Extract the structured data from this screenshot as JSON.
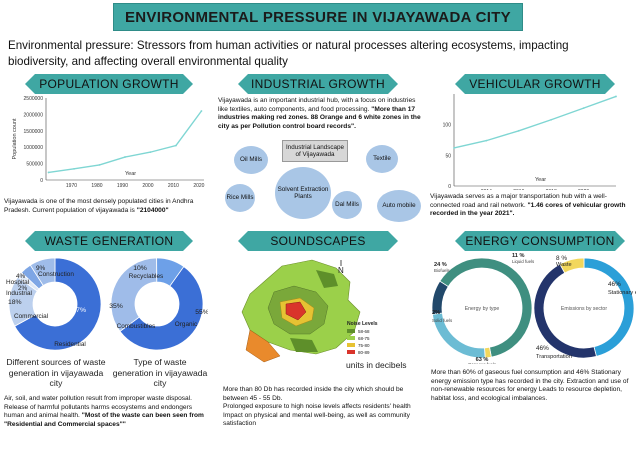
{
  "title": "ENVIRONMENTAL PRESSURE IN VIJAYAWADA CITY",
  "intro": "Environmental pressure: Stressors from human activities or natural processes altering ecosystems, impacting biodiversity, and affecting overall environmental quality",
  "sections": {
    "population": "POPULATION GROWTH",
    "industrial": "INDUSTRIAL GROWTH",
    "vehicular": "VEHICULAR GROWTH",
    "waste": "WASTE GENERATION",
    "soundscapes": "SOUNDSCAPES",
    "energy": "ENERGY CONSUMPTION"
  },
  "population": {
    "text_a": "Vijayawada is one of the most densely populated cities in Andhra Pradesh. Current population of vijayawada is ",
    "text_b": "\"2104000\""
  },
  "industrial": {
    "text_a": "Vijayawada is an important industrial hub, with a focus on industries like textiles, auto components, and food processing.",
    "text_b": "\"More than 17 industries making red zones. 88 Orange and 6 white zones in the city as per Pollution control board records\".",
    "center": "Industrial Landscape of Vijayawada",
    "bubbles": [
      "Oil Mills",
      "Textile",
      "Solvent Extraction Plants",
      "Rice Mills",
      "Dal Mills",
      "Auto mobile"
    ]
  },
  "vehicular": {
    "text_a": "Vijayawada serves as a major transportation hub with a well-connected road and rail network. ",
    "text_b": "\"1.46 cores of vehicular growth recorded in the year 2021\"."
  },
  "waste": {
    "caption1": "Different sources of waste generation in vijayawada city",
    "caption2": "Type of waste generation in vijayawada city",
    "text_a": "Air, soil, and water pollution result from improper waste disposal. Release of harmful pollutants harms ecosystems and endongers human and animal health. ",
    "text_b": "\"Most of the waste can been seen from \"Residential and Commercial spaces\"\""
  },
  "soundscapes": {
    "text": "More than 80 Db has recorded inside the city which should be between 45 - 55 Db.\nProlonged exposure to high noise levels affects residents' health Impact on physical and mental well-being, as well as community satisfaction",
    "legend_title": "Noise Levels",
    "legend": [
      "58-68",
      "68-75",
      "75-80",
      "80-89"
    ],
    "units_label": "units in decibels",
    "north": "N"
  },
  "energy": {
    "text": "More than 60% of gaseous fuel consumption and 46% Stationary energy emission type has recorded in the city. Extraction and use of non-renewable resources for energy Leads to resource depletion, habitat loss, and ecological imbalances.",
    "donut1_center": "Energy by type",
    "donut2_center": "Emissions by sector"
  },
  "chart_data": [
    {
      "type": "line",
      "title": "",
      "xlabel": "Year",
      "ylabel": "Population count",
      "x": [
        1961,
        1971,
        1981,
        1991,
        2001,
        2011,
        2021
      ],
      "series": [
        {
          "values": [
            230000,
            340000,
            460000,
            700000,
            850000,
            1050000,
            2104000
          ]
        }
      ],
      "xticks": [
        "1970",
        "1980",
        "1990",
        "2000",
        "2010",
        "2020"
      ],
      "yticks": [
        "0",
        "500000",
        "1000000",
        "1500000",
        "2000000",
        "2500000"
      ],
      "xlim": [
        1960,
        2022
      ],
      "ylim": [
        0,
        2500000
      ],
      "color": "#7fd6d3"
    },
    {
      "type": "line",
      "title": "",
      "xlabel": "Year",
      "ylabel": "Growth in lakhs",
      "x": [
        2012,
        2014,
        2016,
        2018,
        2020,
        2022
      ],
      "series": [
        {
          "values": [
            62,
            74,
            90,
            108,
            127,
            146
          ]
        }
      ],
      "xticks": [
        "2014",
        "2016",
        "2018",
        "2020"
      ],
      "yticks": [
        "0",
        "50",
        "100"
      ],
      "xlim": [
        2012,
        2022
      ],
      "ylim": [
        0,
        150
      ],
      "color": "#7fd6d3"
    },
    {
      "type": "pie",
      "title": "",
      "labels": [
        "Residential",
        "Commercial",
        "Industrial",
        "Hospital",
        "Construction"
      ],
      "values": [
        67,
        18,
        2,
        4,
        9
      ],
      "display": [
        "67%",
        "18%",
        "2%",
        "4%",
        "9%"
      ],
      "colors": [
        "#3b6fd6",
        "#bcd0ee",
        "#dfe8f6",
        "#7ea6e5",
        "#9fbce9"
      ]
    },
    {
      "type": "pie",
      "title": "",
      "labels": [
        "Organic",
        "Combustibles",
        "Recyclables"
      ],
      "values": [
        55,
        35,
        10
      ],
      "display": [
        "55%",
        "35%",
        "10%"
      ],
      "colors": [
        "#3b6fd6",
        "#9fbce9",
        "#6da0e8"
      ]
    },
    {
      "type": "pie",
      "title": "Energy by type",
      "labels": [
        "Gaseous fuels",
        "Solid fuels",
        "Biofuels",
        "Liquid fuels"
      ],
      "values": [
        63,
        2,
        24,
        11
      ],
      "display": [
        "63 %",
        "2%",
        "24 %",
        "11 %"
      ],
      "colors": [
        "#3f8f80",
        "#f2d75c",
        "#6cbcd4",
        "#22496b"
      ]
    },
    {
      "type": "pie",
      "title": "Emissions by sector",
      "labels": [
        "Stationary energy",
        "Transportation",
        "Waste"
      ],
      "values": [
        46,
        46,
        8
      ],
      "display": [
        "46%",
        "46%",
        "8 %"
      ],
      "colors": [
        "#2b9fd8",
        "#23346b",
        "#f2d75c"
      ]
    }
  ]
}
